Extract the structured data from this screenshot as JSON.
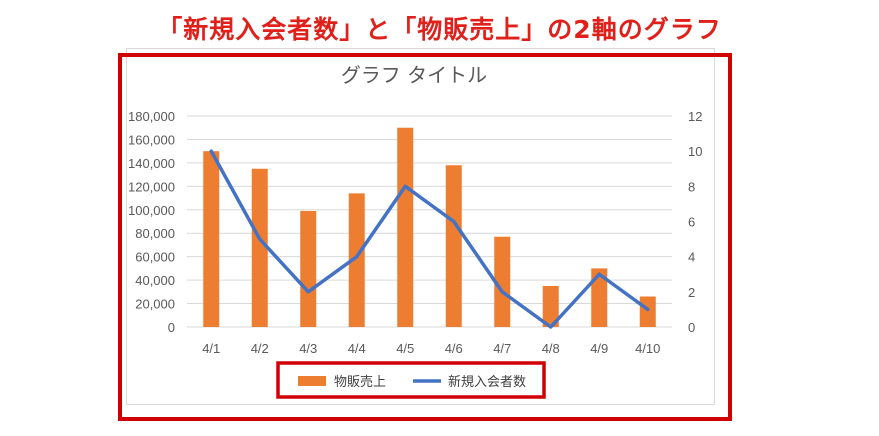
{
  "headline": "「新規入会者数」と「物販売上」の2軸のグラフ",
  "chart_data": {
    "type": "bar",
    "title": "グラフ タイトル",
    "categories": [
      "4/1",
      "4/2",
      "4/3",
      "4/4",
      "4/5",
      "4/6",
      "4/7",
      "4/8",
      "4/9",
      "4/10"
    ],
    "series": [
      {
        "name": "物販売上",
        "type": "bar",
        "axis": "left",
        "color": "#ed7d31",
        "values": [
          150000,
          135000,
          99000,
          114000,
          170000,
          138000,
          77000,
          35000,
          50000,
          26000
        ]
      },
      {
        "name": "新規入会者数",
        "type": "line",
        "axis": "right",
        "color": "#4472c4",
        "values": [
          10,
          5,
          2,
          4,
          8,
          6,
          2,
          0,
          3,
          1
        ]
      }
    ],
    "left_axis": {
      "ylim": [
        0,
        180000
      ],
      "ticks": [
        0,
        20000,
        40000,
        60000,
        80000,
        100000,
        120000,
        140000,
        160000,
        180000
      ],
      "tick_labels": [
        "0",
        "20,000",
        "40,000",
        "60,000",
        "80,000",
        "100,000",
        "120,000",
        "140,000",
        "160,000",
        "180,000"
      ]
    },
    "right_axis": {
      "ylim": [
        0,
        12
      ],
      "ticks": [
        0,
        2,
        4,
        6,
        8,
        10,
        12
      ],
      "tick_labels": [
        "0",
        "2",
        "4",
        "6",
        "8",
        "10",
        "12"
      ]
    },
    "grid": true,
    "legend_position": "bottom"
  }
}
